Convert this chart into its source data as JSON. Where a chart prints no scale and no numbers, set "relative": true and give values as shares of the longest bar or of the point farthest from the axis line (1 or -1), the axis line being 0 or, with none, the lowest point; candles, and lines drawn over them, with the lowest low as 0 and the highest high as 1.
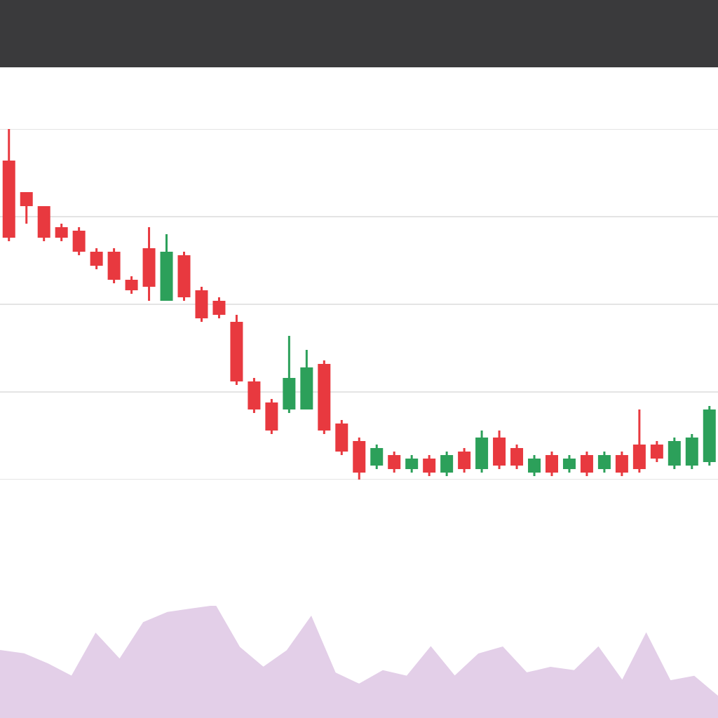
{
  "chart_data": [
    {
      "type": "candlestick",
      "relative": true,
      "grid": true,
      "categories": [
        null,
        null,
        null,
        null,
        null,
        null,
        null,
        null,
        null,
        null,
        null,
        null,
        null,
        null,
        null,
        null,
        null,
        null,
        null,
        null,
        null,
        null,
        null,
        null,
        null,
        null,
        null,
        null,
        null,
        null,
        null,
        null,
        null,
        null,
        null,
        null,
        null,
        null,
        null,
        null,
        null
      ],
      "ohlc": [
        [
          0.91,
          1,
          0.68,
          0.69
        ],
        [
          0.82,
          0.82,
          0.73,
          0.78
        ],
        [
          0.78,
          0.78,
          0.68,
          0.69
        ],
        [
          0.72,
          0.73,
          0.68,
          0.69
        ],
        [
          0.71,
          0.72,
          0.64,
          0.65
        ],
        [
          0.65,
          0.66,
          0.6,
          0.61
        ],
        [
          0.65,
          0.66,
          0.56,
          0.57
        ],
        [
          0.57,
          0.58,
          0.53,
          0.54
        ],
        [
          0.66,
          0.72,
          0.51,
          0.55
        ],
        [
          0.51,
          0.7,
          0.51,
          0.65
        ],
        [
          0.64,
          0.65,
          0.51,
          0.52
        ],
        [
          0.54,
          0.55,
          0.45,
          0.46
        ],
        [
          0.51,
          0.52,
          0.46,
          0.47
        ],
        [
          0.45,
          0.47,
          0.27,
          0.28
        ],
        [
          0.28,
          0.29,
          0.19,
          0.2
        ],
        [
          0.22,
          0.23,
          0.13,
          0.14
        ],
        [
          0.2,
          0.41,
          0.19,
          0.29
        ],
        [
          0.2,
          0.37,
          0.2,
          0.32
        ],
        [
          0.33,
          0.34,
          0.13,
          0.14
        ],
        [
          0.16,
          0.17,
          0.07,
          0.08
        ],
        [
          0.11,
          0.12,
          0,
          0.02
        ],
        [
          0.04,
          0.1,
          0.03,
          0.09
        ],
        [
          0.07,
          0.08,
          0.02,
          0.03
        ],
        [
          0.03,
          0.07,
          0.02,
          0.06
        ],
        [
          0.06,
          0.07,
          0.01,
          0.02
        ],
        [
          0.02,
          0.08,
          0.01,
          0.07
        ],
        [
          0.08,
          0.09,
          0.02,
          0.03
        ],
        [
          0.03,
          0.14,
          0.02,
          0.12
        ],
        [
          0.12,
          0.14,
          0.03,
          0.04
        ],
        [
          0.09,
          0.1,
          0.03,
          0.04
        ],
        [
          0.02,
          0.07,
          0.01,
          0.06
        ],
        [
          0.07,
          0.08,
          0.01,
          0.02
        ],
        [
          0.03,
          0.07,
          0.02,
          0.06
        ],
        [
          0.07,
          0.08,
          0.01,
          0.02
        ],
        [
          0.03,
          0.08,
          0.02,
          0.07
        ],
        [
          0.07,
          0.08,
          0.01,
          0.02
        ],
        [
          0.1,
          0.2,
          0.02,
          0.03
        ],
        [
          0.1,
          0.11,
          0.05,
          0.06
        ],
        [
          0.04,
          0.12,
          0.03,
          0.11
        ],
        [
          0.04,
          0.13,
          0.03,
          0.12
        ],
        [
          0.05,
          0.21,
          0.04,
          0.2
        ]
      ],
      "colors": [
        "#e8393f",
        "#e8393f",
        "#e8393f",
        "#e8393f",
        "#e8393f",
        "#e8393f",
        "#e8393f",
        "#e8393f",
        "#e8393f",
        "#2ca05a",
        "#e8393f",
        "#e8393f",
        "#e8393f",
        "#e8393f",
        "#e8393f",
        "#e8393f",
        "#2ca05a",
        "#2ca05a",
        "#e8393f",
        "#e8393f",
        "#e8393f",
        "#2ca05a",
        "#e8393f",
        "#2ca05a",
        "#e8393f",
        "#2ca05a",
        "#e8393f",
        "#2ca05a",
        "#e8393f",
        "#e8393f",
        "#2ca05a",
        "#e8393f",
        "#2ca05a",
        "#e8393f",
        "#2ca05a",
        "#e8393f",
        "#e8393f",
        "#e8393f",
        "#2ca05a",
        "#2ca05a",
        "#2ca05a"
      ]
    },
    {
      "type": "area",
      "relative": true,
      "categories": [
        null,
        null,
        null,
        null,
        null,
        null,
        null,
        null,
        null,
        null,
        null,
        null,
        null,
        null,
        null,
        null,
        null,
        null,
        null,
        null,
        null,
        null,
        null,
        null,
        null,
        null,
        null,
        null,
        null,
        null,
        null
      ],
      "series": [
        {
          "color": "#e3cfe8",
          "values": [
            0.6,
            0.57,
            0.48,
            0.37,
            0.75,
            0.52,
            0.85,
            0.94,
            0.97,
            1,
            0.63,
            0.45,
            0.6,
            0.9,
            0.4,
            0.3,
            0.42,
            0.37,
            0.63,
            0.37,
            0.57,
            0.63,
            0.4,
            0.45,
            0.42,
            0.63,
            0.33,
            0.75,
            0.33,
            0.37,
            0.19
          ]
        }
      ]
    }
  ]
}
